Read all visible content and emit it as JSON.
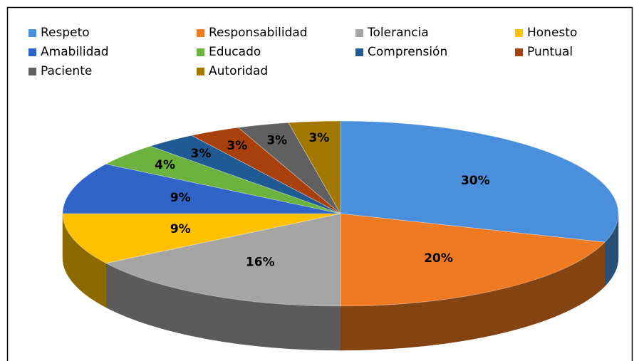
{
  "chart_data": {
    "type": "pie3d",
    "categories": [
      "Respeto",
      "Responsabilidad",
      "Tolerancia",
      "Honesto",
      "Amabilidad",
      "Educado",
      "Comprensión",
      "Puntual",
      "Paciente",
      "Autoridad"
    ],
    "values": [
      30,
      20,
      16,
      9,
      9,
      4,
      3,
      3,
      3,
      3
    ],
    "value_labels": [
      "30%",
      "20%",
      "16%",
      "9%",
      "9%",
      "4%",
      "3%",
      "3%",
      "3%",
      "3%"
    ],
    "colors": [
      "#4A8FDB",
      "#F07A22",
      "#A5A5A5",
      "#FFC000",
      "#3064C8",
      "#6BB23E",
      "#1F5A94",
      "#A8400C",
      "#606060",
      "#A37800"
    ],
    "legend": "top"
  }
}
